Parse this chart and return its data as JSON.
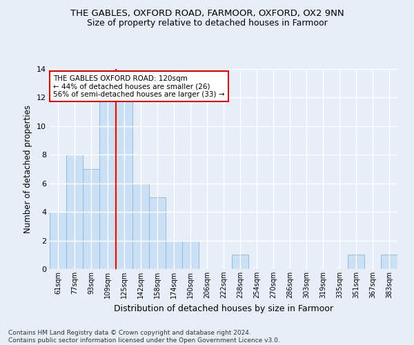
{
  "title": "THE GABLES, OXFORD ROAD, FARMOOR, OXFORD, OX2 9NN",
  "subtitle": "Size of property relative to detached houses in Farmoor",
  "xlabel": "Distribution of detached houses by size in Farmoor",
  "ylabel": "Number of detached properties",
  "bin_labels": [
    "61sqm",
    "77sqm",
    "93sqm",
    "109sqm",
    "125sqm",
    "142sqm",
    "158sqm",
    "174sqm",
    "190sqm",
    "206sqm",
    "222sqm",
    "238sqm",
    "254sqm",
    "270sqm",
    "286sqm",
    "303sqm",
    "319sqm",
    "335sqm",
    "351sqm",
    "367sqm",
    "383sqm"
  ],
  "bar_values": [
    4,
    8,
    7,
    12,
    12,
    6,
    5,
    2,
    2,
    0,
    0,
    1,
    0,
    0,
    0,
    0,
    0,
    0,
    1,
    0,
    1
  ],
  "bar_color": "#cce0f5",
  "bar_edge_color": "#8ab4d8",
  "red_line_x": 3.5,
  "annotation_text": "THE GABLES OXFORD ROAD: 120sqm\n← 44% of detached houses are smaller (26)\n56% of semi-detached houses are larger (33) →",
  "annotation_box_color": "#ffffff",
  "annotation_box_edge_color": "#cc0000",
  "ylim": [
    0,
    14
  ],
  "yticks": [
    0,
    2,
    4,
    6,
    8,
    10,
    12,
    14
  ],
  "footer_text": "Contains HM Land Registry data © Crown copyright and database right 2024.\nContains public sector information licensed under the Open Government Licence v3.0.",
  "background_color": "#e8eef8",
  "plot_background_color": "#e8eef8",
  "grid_color": "#ffffff",
  "title_fontsize": 9.5,
  "subtitle_fontsize": 9,
  "xlabel_fontsize": 9,
  "ylabel_fontsize": 8.5,
  "annotation_fontsize": 7.5
}
